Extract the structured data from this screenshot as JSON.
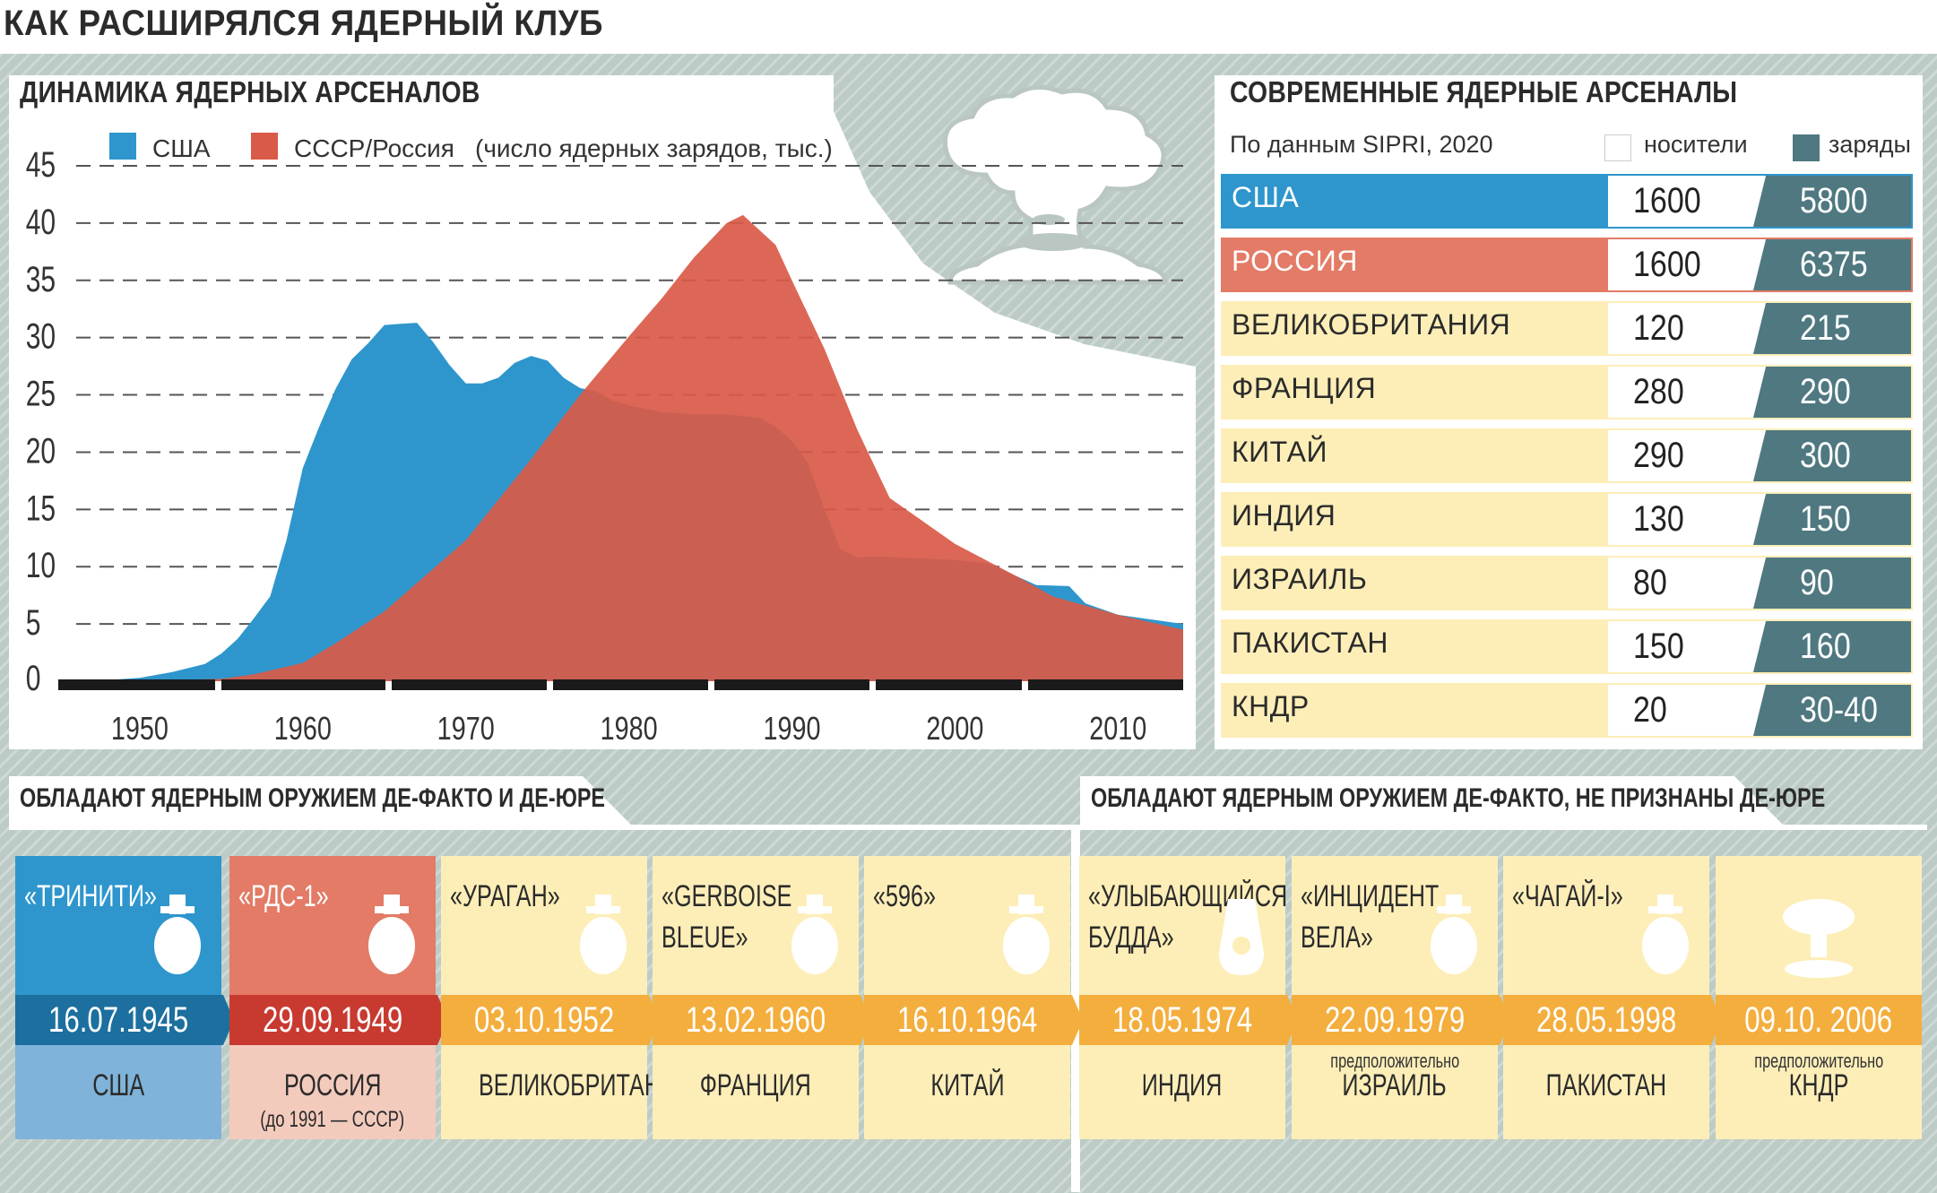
{
  "title": "КАК РАСШИРЯЛСЯ ЯДЕРНЫЙ КЛУБ",
  "colors": {
    "usa": "#2e96cc",
    "russia": "#d95a48",
    "dark": "#4f7880",
    "cream": "#fdeeb8",
    "orange": "#f4ae3d"
  },
  "chart_data": {
    "type": "area",
    "title": "ДИНАМИКА ЯДЕРНЫХ АРСЕНАЛОВ",
    "legend_note": "(число ядерных зарядов, тыс.)",
    "x_ticks": [
      "1950",
      "1960",
      "1970",
      "1980",
      "1990",
      "2000",
      "2010"
    ],
    "y_ticks": [
      "0",
      "5",
      "10",
      "15",
      "20",
      "25",
      "30",
      "35",
      "40",
      "45"
    ],
    "xlim": [
      1945,
      2014
    ],
    "ylim": [
      0,
      45
    ],
    "series": [
      {
        "name": "США",
        "color": "#2e96cc",
        "x": [
          1945,
          1948,
          1950,
          1952,
          1954,
          1955,
          1956,
          1957,
          1958,
          1959,
          1960,
          1961,
          1962,
          1963,
          1964,
          1965,
          1966,
          1967,
          1968,
          1969,
          1970,
          1971,
          1972,
          1973,
          1974,
          1975,
          1976,
          1977,
          1978,
          1979,
          1980,
          1982,
          1984,
          1986,
          1988,
          1989,
          1990,
          1991,
          1992,
          1993,
          1994,
          1995,
          2000,
          2002,
          2005,
          2007,
          2008,
          2010,
          2014
        ],
        "y": [
          0,
          0.1,
          0.3,
          0.8,
          1.5,
          2.4,
          3.7,
          5.5,
          7.4,
          12.3,
          18.6,
          22.2,
          25.5,
          28.1,
          29.5,
          31.1,
          31.2,
          31.3,
          29.6,
          27.6,
          26.0,
          26.0,
          26.5,
          27.8,
          28.4,
          28.0,
          26.5,
          25.6,
          25.3,
          24.5,
          24.1,
          23.5,
          23.3,
          23.3,
          23.0,
          22.2,
          21.0,
          19.0,
          15.0,
          11.5,
          10.8,
          10.9,
          10.6,
          10.3,
          8.4,
          8.3,
          6.8,
          5.8,
          5.0
        ]
      },
      {
        "name": "СССР/Россия",
        "color": "#d95a48",
        "x": [
          1945,
          1949,
          1955,
          1957,
          1960,
          1962,
          1965,
          1970,
          1974,
          1977,
          1980,
          1982,
          1984,
          1986,
          1987,
          1989,
          1990,
          1992,
          1994,
          1996,
          2000,
          2004,
          2006,
          2010,
          2014
        ],
        "y": [
          0,
          0,
          0.2,
          0.6,
          1.6,
          3.3,
          6.1,
          12.3,
          19.4,
          25.0,
          30.1,
          33.4,
          37.0,
          40.0,
          40.7,
          38.1,
          35.0,
          29.0,
          22.0,
          16.0,
          12.0,
          9.0,
          7.4,
          5.8,
          4.5
        ]
      }
    ]
  },
  "arsenals": {
    "title": "СОВРЕМЕННЫЕ ЯДЕРНЫЕ АРСЕНАЛЫ",
    "source": "По данным SIPRI, 2020",
    "legend_carriers": "носители",
    "legend_warheads": "заряды",
    "rows": [
      {
        "country": "США",
        "carriers": "1600",
        "warheads": "5800",
        "bg": "#2e96cc",
        "fg": "#ffffff"
      },
      {
        "country": "РОССИЯ",
        "carriers": "1600",
        "warheads": "6375",
        "bg": "#e37b66",
        "fg": "#ffffff"
      },
      {
        "country": "ВЕЛИКОБРИТАНИЯ",
        "carriers": "120",
        "warheads": "215",
        "bg": "#fdeeb8",
        "fg": "#2b2b2b"
      },
      {
        "country": "ФРАНЦИЯ",
        "carriers": "280",
        "warheads": "290",
        "bg": "#fdeeb8",
        "fg": "#2b2b2b"
      },
      {
        "country": "КИТАЙ",
        "carriers": "290",
        "warheads": "300",
        "bg": "#fdeeb8",
        "fg": "#2b2b2b"
      },
      {
        "country": "ИНДИЯ",
        "carriers": "130",
        "warheads": "150",
        "bg": "#fdeeb8",
        "fg": "#2b2b2b"
      },
      {
        "country": "ИЗРАИЛЬ",
        "carriers": "80",
        "warheads": "90",
        "bg": "#fdeeb8",
        "fg": "#2b2b2b"
      },
      {
        "country": "ПАКИСТАН",
        "carriers": "150",
        "warheads": "160",
        "bg": "#fdeeb8",
        "fg": "#2b2b2b"
      },
      {
        "country": "КНДР",
        "carriers": "20",
        "warheads": "30-40",
        "bg": "#fdeeb8",
        "fg": "#2b2b2b"
      }
    ]
  },
  "tests": {
    "left_title": "ОБЛАДАЮТ ЯДЕРНЫМ ОРУЖИЕМ ДЕ-ФАКТО И ДЕ-ЮРЕ",
    "right_title": "ОБЛАДАЮТ ЯДЕРНЫМ ОРУЖИЕМ ДЕ-ФАКТО, НЕ ПРИЗНАНЫ ДЕ-ЮРЕ",
    "cards": [
      {
        "name": "«ТРИНИТИ»",
        "date": "16.07.1945",
        "country": "США",
        "sub": "",
        "note": "",
        "icon": "bomb-icon",
        "top": "#2e96cc",
        "topfg": "#ffffff",
        "datebg": "#1c6f9e",
        "bottom": "#7fb3d9",
        "fg": "#2b2b2b"
      },
      {
        "name": "«РДС-1»",
        "date": "29.09.1949",
        "country": "РОССИЯ",
        "sub": "(до 1991 — СССР)",
        "note": "",
        "icon": "bomb-icon",
        "top": "#e37b66",
        "topfg": "#ffffff",
        "datebg": "#c83a30",
        "bottom": "#f3cbbd",
        "fg": "#2b2b2b"
      },
      {
        "name": "«УРАГАН»",
        "date": "03.10.1952",
        "country": "ВЕЛИКОБРИТАНИЯ",
        "sub": "",
        "note": "",
        "icon": "bomb-icon",
        "top": "#fdeeb8",
        "topfg": "#2b2b2b",
        "datebg": "#f4ae3d",
        "bottom": "#fdeeb8",
        "fg": "#2b2b2b"
      },
      {
        "name": "«GERBOISE\nBLEUE»",
        "date": "13.02.1960",
        "country": "ФРАНЦИЯ",
        "sub": "",
        "note": "",
        "icon": "bomb-icon",
        "top": "#fdeeb8",
        "topfg": "#2b2b2b",
        "datebg": "#f4ae3d",
        "bottom": "#fdeeb8",
        "fg": "#2b2b2b"
      },
      {
        "name": "«596»",
        "date": "16.10.1964",
        "country": "КИТАЙ",
        "sub": "",
        "note": "",
        "icon": "bomb-icon",
        "top": "#fdeeb8",
        "topfg": "#2b2b2b",
        "datebg": "#f4ae3d",
        "bottom": "#fdeeb8",
        "fg": "#2b2b2b"
      },
      {
        "name": "«УЛЫБАЮЩИЙСЯ\nБУДДА»",
        "date": "18.05.1974",
        "country": "ИНДИЯ",
        "sub": "",
        "note": "",
        "icon": "nuclear-device-icon",
        "top": "#fdeeb8",
        "topfg": "#2b2b2b",
        "datebg": "#f4ae3d",
        "bottom": "#fdeeb8",
        "fg": "#2b2b2b"
      },
      {
        "name": "«ИНЦИДЕНТ\nВЕЛА»",
        "date": "22.09.1979",
        "country": "ИЗРАИЛЬ",
        "sub": "",
        "note": "предположительно",
        "icon": "bomb-icon",
        "top": "#fdeeb8",
        "topfg": "#2b2b2b",
        "datebg": "#f4ae3d",
        "bottom": "#fdeeb8",
        "fg": "#2b2b2b"
      },
      {
        "name": "«ЧАГАЙ-I»",
        "date": "28.05.1998",
        "country": "ПАКИСТАН",
        "sub": "",
        "note": "",
        "icon": "bomb-icon",
        "top": "#fdeeb8",
        "topfg": "#2b2b2b",
        "datebg": "#f4ae3d",
        "bottom": "#fdeeb8",
        "fg": "#2b2b2b"
      },
      {
        "name": "",
        "date": "09.10. 2006",
        "country": "КНДР",
        "sub": "",
        "note": "предположительно",
        "icon": "mushroom-cloud-icon",
        "top": "#fdeeb8",
        "topfg": "#2b2b2b",
        "datebg": "#f4ae3d",
        "bottom": "#fdeeb8",
        "fg": "#2b2b2b"
      }
    ]
  }
}
